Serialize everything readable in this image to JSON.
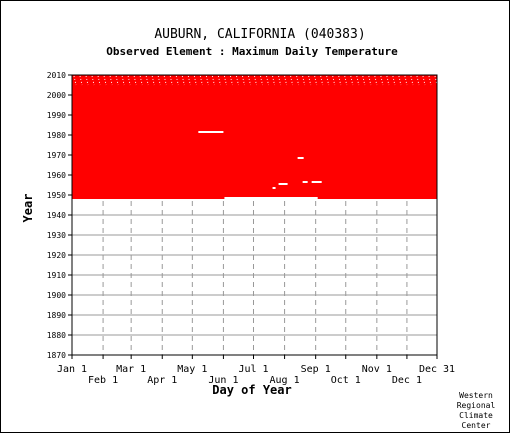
{
  "chart_data": {
    "type": "heatmap",
    "title": "AUBURN, CALIFORNIA   (040383)",
    "subtitle": "Observed Element : Maximum Daily Temperature",
    "xlabel": "Day of Year",
    "ylabel": "Year",
    "xlim": [
      1,
      365
    ],
    "ylim": [
      1870,
      2010
    ],
    "y_ticks": [
      1870,
      1880,
      1890,
      1900,
      1910,
      1920,
      1930,
      1940,
      1950,
      1960,
      1970,
      1980,
      1990,
      2000,
      2010
    ],
    "x_ticks_row1": [
      {
        "label": "Jan 1",
        "day": 1
      },
      {
        "label": "Mar 1",
        "day": 60
      },
      {
        "label": "May 1",
        "day": 121
      },
      {
        "label": "Jul 1",
        "day": 182
      },
      {
        "label": "Sep 1",
        "day": 244
      },
      {
        "label": "Nov 1",
        "day": 305
      },
      {
        "label": "Dec 31",
        "day": 365
      }
    ],
    "x_ticks_row2": [
      {
        "label": "Feb 1",
        "day": 32
      },
      {
        "label": "Apr 1",
        "day": 91
      },
      {
        "label": "Jun 1",
        "day": 152
      },
      {
        "label": "Aug 1",
        "day": 213
      },
      {
        "label": "Oct 1",
        "day": 274
      },
      {
        "label": "Dec 1",
        "day": 335
      }
    ],
    "grid": true,
    "data_color": "#ff0000",
    "coverage": {
      "year_start": 1948,
      "year_end": 2010,
      "day_start": 1,
      "day_end": 365
    },
    "missing": [
      {
        "year_from": 1981,
        "year_to": 1982,
        "day_from": 127,
        "day_to": 152
      },
      {
        "year_from": 1968,
        "year_to": 1969,
        "day_from": 226,
        "day_to": 232
      },
      {
        "year_from": 1956,
        "year_to": 1957,
        "day_from": 231,
        "day_to": 236
      },
      {
        "year_from": 1955,
        "year_to": 1956,
        "day_from": 207,
        "day_to": 216
      },
      {
        "year_from": 1956,
        "year_to": 1957,
        "day_from": 240,
        "day_to": 250
      },
      {
        "year_from": 1953,
        "year_to": 1954,
        "day_from": 201,
        "day_to": 204
      },
      {
        "year_from": 1948,
        "year_to": 1949,
        "day_from": 153,
        "day_to": 240
      },
      {
        "year_from": 1948,
        "year_to": 1949,
        "day_from": 228,
        "day_to": 246
      }
    ]
  },
  "credit": [
    "Western",
    "Regional",
    "Climate",
    "Center"
  ]
}
